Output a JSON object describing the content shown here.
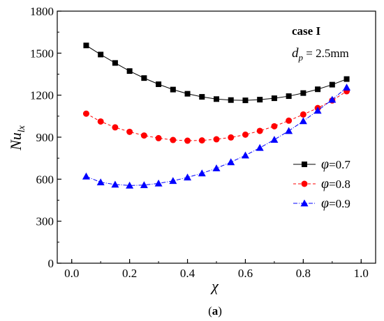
{
  "chart_data": {
    "type": "line",
    "title": "",
    "xlabel": "χ",
    "ylabel": "Nu",
    "ylabel_sub": "lx",
    "xlim": [
      -0.05,
      1.05
    ],
    "ylim": [
      0,
      1800
    ],
    "xticks": [
      0.0,
      0.2,
      0.4,
      0.6,
      0.8,
      1.0
    ],
    "xtick_labels": [
      "0.0",
      "0.2",
      "0.4",
      "0.6",
      "0.8",
      "1.0"
    ],
    "yticks": [
      0,
      300,
      600,
      900,
      1200,
      1500,
      1800
    ],
    "ytick_labels": [
      "0",
      "300",
      "600",
      "900",
      "1200",
      "1500",
      "1800"
    ],
    "grid": false,
    "legend_position": "right-middle",
    "annotations": {
      "case": "case I",
      "dp_symbol": "d",
      "dp_sub": "p",
      "dp_value": " = 2.5mm"
    },
    "caption": {
      "open": "(",
      "letter": "a",
      "close": ")"
    },
    "x": [
      0.05,
      0.1,
      0.15,
      0.2,
      0.25,
      0.3,
      0.35,
      0.4,
      0.45,
      0.5,
      0.55,
      0.6,
      0.65,
      0.7,
      0.75,
      0.8,
      0.85,
      0.9,
      0.95
    ],
    "series": [
      {
        "name_symbol": "φ",
        "name_value": "=0.7",
        "color": "#000000",
        "marker": "square",
        "line_style": "solid",
        "values": [
          1555,
          1490,
          1430,
          1372,
          1322,
          1278,
          1240,
          1210,
          1188,
          1172,
          1165,
          1163,
          1168,
          1178,
          1193,
          1215,
          1242,
          1275,
          1315
        ]
      },
      {
        "name_symbol": "φ",
        "name_value": "=0.8",
        "color": "#ff0000",
        "marker": "circle",
        "line_style": "dashed",
        "values": [
          1068,
          1012,
          970,
          938,
          912,
          893,
          880,
          875,
          877,
          885,
          898,
          918,
          945,
          978,
          1018,
          1062,
          1108,
          1162,
          1228
        ]
      },
      {
        "name_symbol": "φ",
        "name_value": "=0.9",
        "color": "#0000ff",
        "marker": "triangle",
        "line_style": "dashdot",
        "values": [
          620,
          578,
          562,
          555,
          558,
          570,
          588,
          613,
          642,
          678,
          722,
          770,
          824,
          882,
          945,
          1015,
          1090,
          1168,
          1255
        ]
      }
    ]
  }
}
